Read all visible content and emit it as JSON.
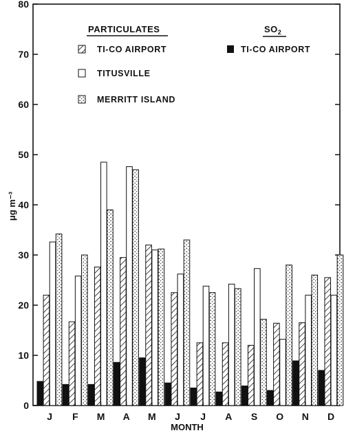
{
  "chart_data": {
    "type": "bar",
    "title": "",
    "xlabel": "MONTH",
    "ylabel": "μg m⁻³",
    "ylim": [
      0,
      80
    ],
    "yticks": [
      0,
      10,
      20,
      30,
      40,
      50,
      60,
      70,
      80
    ],
    "categories": [
      "J",
      "F",
      "M",
      "A",
      "M",
      "J",
      "J",
      "A",
      "S",
      "O",
      "N",
      "D"
    ],
    "legend_groups": {
      "particulates": "PARTICULATES",
      "so2_main": "SO",
      "so2_sub": "2"
    },
    "series": [
      {
        "name": "TI-CO AIRPORT",
        "group": "SO2",
        "pattern": "solid",
        "values": [
          4.8,
          4.2,
          4.2,
          8.6,
          9.5,
          4.5,
          3.5,
          2.7,
          3.9,
          3.0,
          8.9,
          7.0
        ]
      },
      {
        "name": "TI-CO AIRPORT",
        "group": "PARTICULATES",
        "pattern": "hatch",
        "values": [
          22,
          16.7,
          27.6,
          29.5,
          32,
          22.5,
          12.5,
          12.5,
          12,
          16.4,
          16.5,
          25.5
        ]
      },
      {
        "name": "TITUSVILLE",
        "group": "PARTICULATES",
        "pattern": "open",
        "values": [
          32.6,
          25.8,
          48.5,
          47.6,
          31,
          26.2,
          23.8,
          24.2,
          27.3,
          13.2,
          22,
          22
        ]
      },
      {
        "name": "MERRITT ISLAND",
        "group": "PARTICULATES",
        "pattern": "dotted",
        "values": [
          34.2,
          30,
          39,
          47,
          31.2,
          33,
          22.5,
          23.3,
          17.2,
          28,
          26,
          30
        ]
      }
    ],
    "grid": false,
    "legend_position": "top"
  }
}
